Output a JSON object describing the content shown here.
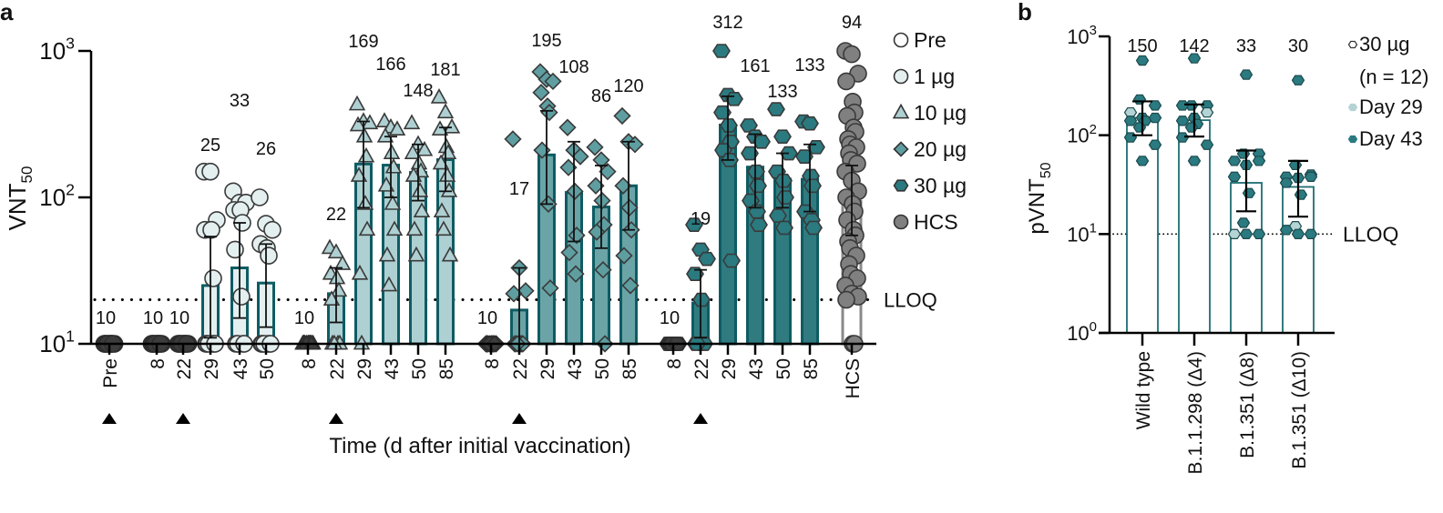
{
  "chart_data": [
    {
      "panel": "a",
      "type": "bar",
      "scale": "log",
      "ylabel": "VNT",
      "ylabel_sub": "50",
      "xlabel": "Time (d after initial vaccination)",
      "ylim": [
        10,
        1000
      ],
      "yticks": [
        {
          "value": 1000,
          "base": "10",
          "exp": "3"
        },
        {
          "value": 100,
          "base": "10",
          "exp": "2"
        },
        {
          "value": 10,
          "base": "10",
          "exp": "1"
        }
      ],
      "lloq": {
        "value": 20,
        "label": "LLOQ"
      },
      "legend_position": "top-right",
      "legend": [
        {
          "label": "Pre",
          "marker": "circle",
          "fill": "#ffffff"
        },
        {
          "label": "1 µg",
          "marker": "circle",
          "fill": "#e4eff0"
        },
        {
          "label": "10 µg",
          "marker": "triangle",
          "fill": "#afd0d2"
        },
        {
          "label": "20 µg",
          "marker": "diamond",
          "fill": "#5e9ea1"
        },
        {
          "label": "30 µg",
          "marker": "hexagon",
          "fill": "#2a7a80"
        },
        {
          "label": "HCS",
          "marker": "circle",
          "fill": "#808080"
        }
      ],
      "vaccination_marks": [
        "Pre",
        "1-22",
        "10-22",
        "20-22",
        "30-22"
      ],
      "groups": [
        {
          "name": "Pre",
          "marker": "circle",
          "fill": "#ffffff",
          "bars": [
            {
              "label": "Pre",
              "value": 10,
              "annot": "10",
              "dark": true,
              "points": [
                10,
                10,
                10,
                10,
                10,
                10,
                10,
                10,
                10,
                10,
                10,
                10
              ]
            }
          ]
        },
        {
          "name": "1 µg",
          "marker": "circle",
          "fill": "#e4eff0",
          "bars": [
            {
              "label": "8",
              "value": 10,
              "annot": "10",
              "dark": true,
              "points": [
                10,
                10,
                10,
                10,
                10,
                10,
                10,
                10,
                10,
                10,
                10,
                10
              ]
            },
            {
              "label": "22",
              "value": 10,
              "annot": "10",
              "dark": true,
              "points": [
                10,
                10,
                10,
                10,
                10,
                10,
                10,
                10,
                10,
                10,
                10,
                10
              ]
            },
            {
              "label": "29",
              "value": 25,
              "annot": "25",
              "err": [
                11,
                54
              ],
              "points": [
                150,
                150,
                70,
                60,
                60,
                28,
                10,
                10,
                10,
                10,
                10,
                10
              ]
            },
            {
              "label": "43",
              "value": 33,
              "annot": "33",
              "err": [
                15,
                67
              ],
              "points": [
                110,
                92,
                92,
                82,
                82,
                67,
                44,
                21,
                10,
                10,
                10,
                10
              ]
            },
            {
              "label": "50",
              "value": 26,
              "annot": "26",
              "err": [
                13,
                48
              ],
              "points": [
                100,
                66,
                60,
                48,
                45,
                40,
                10,
                10,
                10,
                10,
                10,
                10
              ]
            }
          ]
        },
        {
          "name": "10 µg",
          "marker": "triangle",
          "fill": "#afd0d2",
          "bars": [
            {
              "label": "8",
              "value": 10,
              "annot": "10",
              "dark": true,
              "points": [
                10,
                10,
                10,
                10,
                10,
                10,
                10,
                10,
                10,
                10,
                10,
                10
              ]
            },
            {
              "label": "22",
              "value": 22,
              "annot": "22",
              "err": [
                14,
                33
              ],
              "points": [
                45,
                42,
                35,
                30,
                28,
                23,
                20,
                10,
                10,
                10,
                10
              ]
            },
            {
              "label": "29",
              "value": 169,
              "annot": "169",
              "err": [
                85,
                330
              ],
              "points": [
                430,
                330,
                320,
                310,
                260,
                190,
                140,
                90,
                60,
                30,
                10
              ]
            },
            {
              "label": "43",
              "value": 166,
              "annot": "166",
              "err": [
                100,
                260
              ],
              "points": [
                330,
                300,
                290,
                260,
                200,
                160,
                120,
                90,
                60,
                40,
                25
              ]
            },
            {
              "label": "50",
              "value": 148,
              "annot": "148",
              "err": [
                95,
                230
              ],
              "points": [
                320,
                230,
                210,
                200,
                170,
                150,
                140,
                110,
                80,
                60,
                40
              ]
            },
            {
              "label": "85",
              "value": 181,
              "annot": "181",
              "err": [
                110,
                300
              ],
              "points": [
                480,
                380,
                300,
                290,
                220,
                200,
                170,
                140,
                110,
                80,
                60,
                40
              ]
            }
          ]
        },
        {
          "name": "20 µg",
          "marker": "diamond",
          "fill": "#5e9ea1",
          "bars": [
            {
              "label": "8",
              "value": 10,
              "annot": "10",
              "dark": true,
              "points": [
                10,
                10,
                10,
                10,
                10,
                10,
                10,
                10,
                10,
                10,
                10,
                10
              ]
            },
            {
              "label": "22",
              "value": 17,
              "annot": "17",
              "err": [
                10,
                33
              ],
              "points": [
                250,
                33,
                23,
                22,
                10,
                10,
                10,
                10,
                10,
                10,
                10
              ]
            },
            {
              "label": "29",
              "value": 195,
              "annot": "195",
              "err": [
                90,
                390
              ],
              "points": [
                720,
                640,
                620,
                520,
                420,
                380,
                210,
                90,
                24
              ]
            },
            {
              "label": "43",
              "value": 108,
              "annot": "108",
              "err": [
                50,
                240
              ],
              "points": [
                300,
                210,
                190,
                160,
                110,
                55,
                42,
                30
              ]
            },
            {
              "label": "50",
              "value": 86,
              "annot": "86",
              "err": [
                45,
                165
              ],
              "points": [
                220,
                180,
                150,
                120,
                95,
                65,
                58,
                32,
                10
              ]
            },
            {
              "label": "85",
              "value": 120,
              "annot": "120",
              "err": [
                60,
                240
              ],
              "points": [
                360,
                240,
                230,
                120,
                85,
                60,
                40,
                25
              ]
            }
          ]
        },
        {
          "name": "30 µg",
          "marker": "hexagon",
          "fill": "#2a7a80",
          "bars": [
            {
              "label": "8",
              "value": 10,
              "annot": "10",
              "dark": true,
              "points": [
                10,
                10,
                10,
                10,
                10,
                10,
                10,
                10,
                10,
                10,
                10,
                10
              ]
            },
            {
              "label": "22",
              "value": 19,
              "annot": "19",
              "err": [
                11,
                32
              ],
              "points": [
                65,
                44,
                38,
                30,
                20,
                10,
                10,
                10,
                10,
                10
              ]
            },
            {
              "label": "29",
              "value": 312,
              "annot": "312",
              "err": [
                180,
                490
              ],
              "points": [
                1000,
                500,
                470,
                380,
                310,
                240,
                210,
                180,
                37
              ]
            },
            {
              "label": "43",
              "value": 161,
              "annot": "161",
              "err": [
                85,
                270
              ],
              "points": [
                310,
                260,
                240,
                200,
                150,
                120,
                95,
                80,
                65
              ]
            },
            {
              "label": "50",
              "value": 133,
              "annot": "133",
              "err": [
                85,
                200
              ],
              "points": [
                400,
                260,
                200,
                150,
                130,
                100,
                75,
                62
              ]
            },
            {
              "label": "85",
              "value": 133,
              "annot": "133",
              "err": [
                80,
                230
              ],
              "points": [
                330,
                320,
                220,
                190,
                140,
                120,
                80,
                70,
                62
              ]
            }
          ]
        },
        {
          "name": "HCS",
          "marker": "circle",
          "fill": "#808080",
          "hollow_bar": true,
          "bars": [
            {
              "label": "HCS",
              "value": 94,
              "annot": "94",
              "err": [
                55,
                165
              ],
              "points": [
                1000,
                950,
                700,
                620,
                450,
                380,
                360,
                300,
                280,
                250,
                230,
                220,
                200,
                180,
                170,
                150,
                130,
                110,
                100,
                90,
                80,
                70,
                60,
                55,
                50,
                45,
                40,
                35,
                30,
                28,
                25,
                22,
                21,
                20,
                10,
                10
              ]
            }
          ]
        }
      ]
    },
    {
      "panel": "b",
      "type": "bar",
      "scale": "log",
      "ylabel": "pVNT",
      "ylabel_sub": "50",
      "ylim": [
        1,
        1000
      ],
      "yticks": [
        {
          "value": 1000,
          "base": "10",
          "exp": "3"
        },
        {
          "value": 100,
          "base": "10",
          "exp": "2"
        },
        {
          "value": 10,
          "base": "10",
          "exp": "1"
        },
        {
          "value": 1,
          "base": "10",
          "exp": "0"
        }
      ],
      "lloq": {
        "value": 10,
        "label": "LLOQ"
      },
      "legend_position": "top-right",
      "legend": [
        {
          "label": "30 µg",
          "marker": "hexagon",
          "fill": "#ffffff"
        },
        {
          "label": "(n = 12)",
          "marker": "none"
        },
        {
          "label": "Day 29",
          "marker": "hexagon",
          "fill": "#b4d3d5"
        },
        {
          "label": "Day 43",
          "marker": "hexagon",
          "fill": "#2a7a80"
        }
      ],
      "categories": [
        "Wild type",
        "B.1.1.298 (Δ4)",
        "B.1.351 (Δ8)",
        "B.1.351 (Δ10)"
      ],
      "values": [
        150,
        142,
        33,
        30
      ],
      "annotations": [
        "150",
        "142",
        "33",
        "30"
      ],
      "errors": [
        [
          100,
          220
        ],
        [
          97,
          205
        ],
        [
          17,
          70
        ],
        [
          15,
          55
        ]
      ],
      "points": [
        [
          {
            "v": 570,
            "d": 43
          },
          {
            "v": 230,
            "d": 43
          },
          {
            "v": 200,
            "d": 43
          },
          {
            "v": 170,
            "d": 29
          },
          {
            "v": 150,
            "d": 43
          },
          {
            "v": 150,
            "d": 43
          },
          {
            "v": 140,
            "d": 43
          },
          {
            "v": 140,
            "d": 43
          },
          {
            "v": 120,
            "d": 43
          },
          {
            "v": 95,
            "d": 43
          },
          {
            "v": 80,
            "d": 43
          },
          {
            "v": 55,
            "d": 43
          }
        ],
        [
          {
            "v": 600,
            "d": 43
          },
          {
            "v": 200,
            "d": 43
          },
          {
            "v": 200,
            "d": 43
          },
          {
            "v": 200,
            "d": 43
          },
          {
            "v": 170,
            "d": 29
          },
          {
            "v": 150,
            "d": 43
          },
          {
            "v": 140,
            "d": 43
          },
          {
            "v": 130,
            "d": 43
          },
          {
            "v": 120,
            "d": 43
          },
          {
            "v": 95,
            "d": 43
          },
          {
            "v": 80,
            "d": 43
          },
          {
            "v": 55,
            "d": 43
          }
        ],
        [
          {
            "v": 410,
            "d": 43
          },
          {
            "v": 65,
            "d": 43
          },
          {
            "v": 65,
            "d": 43
          },
          {
            "v": 55,
            "d": 43
          },
          {
            "v": 55,
            "d": 43
          },
          {
            "v": 50,
            "d": 43
          },
          {
            "v": 38,
            "d": 43
          },
          {
            "v": 26,
            "d": 43
          },
          {
            "v": 13,
            "d": 43
          },
          {
            "v": 10,
            "d": 29
          },
          {
            "v": 10,
            "d": 43
          },
          {
            "v": 10,
            "d": 43
          }
        ],
        [
          {
            "v": 360,
            "d": 43
          },
          {
            "v": 50,
            "d": 43
          },
          {
            "v": 40,
            "d": 43
          },
          {
            "v": 38,
            "d": 43
          },
          {
            "v": 38,
            "d": 43
          },
          {
            "v": 37,
            "d": 43
          },
          {
            "v": 33,
            "d": 43
          },
          {
            "v": 25,
            "d": 43
          },
          {
            "v": 12,
            "d": 29
          },
          {
            "v": 11,
            "d": 43
          },
          {
            "v": 10,
            "d": 43
          },
          {
            "v": 10,
            "d": 43
          }
        ]
      ]
    }
  ],
  "panel_labels": {
    "a": "a",
    "b": "b"
  },
  "colors": {
    "teal_dark": "#0e5c63",
    "bar_1ug": "#e4eff0",
    "bar_10ug": "#afd0d2",
    "bar_20ug": "#6aa4a7",
    "bar_30ug": "#2f7b80",
    "hcs_bar": "#8a8a8a",
    "point_dark": "#3e3e3e",
    "axis": "#000000"
  }
}
